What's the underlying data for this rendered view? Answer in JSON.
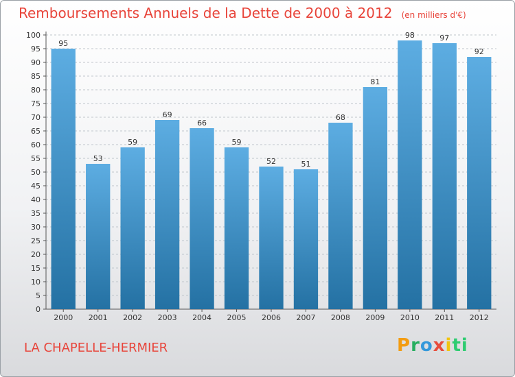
{
  "title": "Remboursements Annuels de la Dette de 2000 à 2012",
  "unit_note": "(en milliers d'€)",
  "commune": "LA CHAPELLE-HERMIER",
  "logo_letters": [
    "P",
    "r",
    "o",
    "x",
    "i",
    "ti"
  ],
  "colors": {
    "title": "#e8443a",
    "bar_top": "#5dade2",
    "bar_bottom": "#2471a3",
    "grid": "#c0c6cc"
  },
  "chart_data": {
    "type": "bar",
    "categories": [
      "2000",
      "2001",
      "2002",
      "2003",
      "2004",
      "2005",
      "2006",
      "2007",
      "2008",
      "2009",
      "2010",
      "2011",
      "2012"
    ],
    "values": [
      95,
      53,
      59,
      69,
      66,
      59,
      52,
      51,
      68,
      81,
      98,
      97,
      92
    ],
    "ylim": [
      0,
      100
    ],
    "ytick_step": 5,
    "yticks": [
      "0",
      "5",
      "10",
      "15",
      "20",
      "25",
      "30",
      "35",
      "40",
      "45",
      "50",
      "55",
      "60",
      "65",
      "70",
      "75",
      "80",
      "85",
      "90",
      "95",
      "100"
    ],
    "grid": true,
    "title": "Remboursements Annuels de la Dette de 2000 à 2012",
    "xlabel": "",
    "ylabel": ""
  }
}
